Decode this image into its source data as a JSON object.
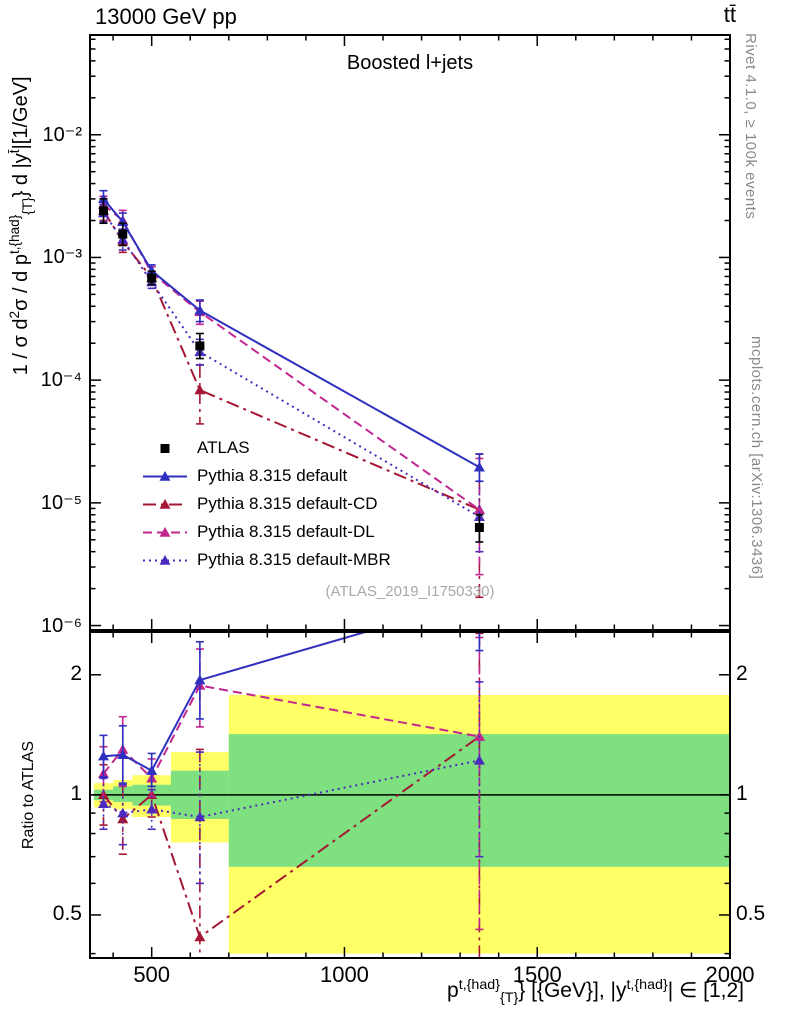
{
  "header": {
    "left": "13000 GeV pp",
    "right": "tt̄"
  },
  "side_notes": {
    "top_right": "Rivet 4.1.0, ≥ 100k events",
    "bottom_right": "mcplots.cern.ch [arXiv:1306.3436]"
  },
  "chart_data": {
    "type": "line",
    "title": "Boosted l+jets",
    "watermark": "(ATLAS_2019_I1750330)",
    "xlabel_html": "p<sup>t,{had}</sup><sub>{T}</sub>} [{GeV}], |y<sup>t,{had}</sup>| ∈ [1,2]",
    "xlim": [
      340,
      2000
    ],
    "xticks": [
      500,
      1000,
      1500,
      2000
    ],
    "x_minor_step": 100,
    "x": [
      375,
      425,
      500,
      625,
      1350
    ],
    "bin_edges": [
      350,
      400,
      450,
      550,
      700,
      2000
    ],
    "main": {
      "ylabel_html": "1 / σ d<sup>2</sup>σ / d p<sup>t,{had}</sup><sub>{T}</sub>} d |y<sup>t̄</sup>|[1/GeV]",
      "ylim": [
        9.2e-07,
        0.065
      ],
      "yticks": [
        {
          "value": 0.01,
          "label": "10⁻²"
        },
        {
          "value": 0.001,
          "label": "10⁻³"
        },
        {
          "value": 0.0001,
          "label": "10⁻⁴"
        },
        {
          "value": 1e-05,
          "label": "10⁻⁵"
        },
        {
          "value": 1e-06,
          "label": "10⁻⁶"
        }
      ]
    },
    "ratio": {
      "ylabel": "Ratio to ATLAS",
      "ylim": [
        0.39,
        2.56
      ],
      "yticks": [
        {
          "value": 0.5,
          "label": "0.5"
        },
        {
          "value": 1,
          "label": "1"
        },
        {
          "value": 2,
          "label": "2"
        }
      ],
      "yminor": [
        0.4,
        0.6,
        0.7,
        0.8,
        0.9
      ],
      "band_colors": {
        "yellow": "#ffff66",
        "green": "#7fe07f"
      },
      "bands": [
        {
          "xlo": 350,
          "xhi": 400,
          "yellow": [
            0.93,
            1.07
          ],
          "green": [
            0.97,
            1.03
          ]
        },
        {
          "xlo": 400,
          "xhi": 450,
          "yellow": [
            0.92,
            1.09
          ],
          "green": [
            0.96,
            1.05
          ]
        },
        {
          "xlo": 450,
          "xhi": 550,
          "yellow": [
            0.88,
            1.12
          ],
          "green": [
            0.94,
            1.06
          ]
        },
        {
          "xlo": 550,
          "xhi": 700,
          "yellow": [
            0.76,
            1.28
          ],
          "green": [
            0.87,
            1.15
          ]
        },
        {
          "xlo": 700,
          "xhi": 2000,
          "yellow": [
            0.4,
            1.78
          ],
          "green": [
            0.66,
            1.42
          ]
        }
      ]
    },
    "series": [
      {
        "name": "ATLAS",
        "color": "#000000",
        "marker": "square",
        "line": "none",
        "ratio_line": 1,
        "y": [
          0.0024,
          0.00155,
          0.00068,
          0.00019,
          6.3e-06
        ],
        "ylo": [
          0.0019,
          0.00125,
          0.0006,
          0.00015,
          4.8e-06
        ],
        "yhi": [
          0.003,
          0.0019,
          0.00077,
          0.00024,
          8e-06
        ]
      },
      {
        "name": "Pythia 8.315 default",
        "color": "#2f2fc0",
        "marker": "triangle",
        "line": "solid",
        "y": [
          0.003,
          0.00195,
          0.00078,
          0.00037,
          1.95e-05
        ],
        "ylo": [
          0.00255,
          0.00162,
          0.0007,
          0.0003,
          1.5e-05
        ],
        "yhi": [
          0.0035,
          0.0023,
          0.00087,
          0.00045,
          2.5e-05
        ],
        "r": [
          1.25,
          1.26,
          1.15,
          1.94,
          3.1
        ],
        "rlo": [
          1.11,
          1.07,
          1.05,
          1.55,
          2.3
        ],
        "rhi": [
          1.41,
          1.49,
          1.27,
          2.42,
          3.9
        ]
      },
      {
        "name": "Pythia 8.315 default-CD",
        "color": "#a61733",
        "marker": "triangle",
        "line": "dashdot",
        "y": [
          0.0024,
          0.00135,
          0.00068,
          8.3e-05,
          8.8e-06
        ],
        "ylo": [
          0.002,
          0.0011,
          0.0006,
          4.4e-05,
          1.7e-06
        ],
        "yhi": [
          0.00285,
          0.00162,
          0.00077,
          0.000133,
          2.5e-05
        ],
        "r": [
          1.0,
          0.87,
          1.0,
          0.44,
          1.4
        ],
        "rlo": [
          0.84,
          0.71,
          0.88,
          0.23,
          0.36
        ],
        "rhi": [
          1.19,
          1.06,
          1.13,
          1.3,
          2.54
        ]
      },
      {
        "name": "Pythia 8.315 default-DL",
        "color": "#c2268f",
        "marker": "triangle",
        "line": "dashed",
        "y": [
          0.0027,
          0.002,
          0.00075,
          0.00036,
          8.8e-06
        ],
        "ylo": [
          0.0023,
          0.00162,
          0.00067,
          0.000285,
          2.6e-06
        ],
        "yhi": [
          0.00315,
          0.00242,
          0.00084,
          0.00044,
          2.3e-05
        ],
        "r": [
          1.13,
          1.3,
          1.1,
          1.88,
          1.4
        ],
        "rlo": [
          0.96,
          1.05,
          0.99,
          1.48,
          0.46
        ],
        "rhi": [
          1.32,
          1.57,
          1.23,
          2.32,
          2.48
        ]
      },
      {
        "name": "Pythia 8.315 default-MBR",
        "color": "#4b2bbf",
        "marker": "triangle",
        "line": "dotted",
        "y": [
          0.0023,
          0.0014,
          0.00063,
          0.00017,
          7.7e-06
        ],
        "ylo": [
          0.00195,
          0.00115,
          0.00056,
          0.000133,
          4e-06
        ],
        "yhi": [
          0.0027,
          0.0017,
          0.00071,
          0.000215,
          1.5e-05
        ],
        "r": [
          0.95,
          0.9,
          0.92,
          0.88,
          1.22
        ],
        "rlo": [
          0.82,
          0.75,
          0.82,
          0.6,
          0.7
        ],
        "rhi": [
          1.1,
          1.06,
          1.03,
          1.28,
          1.92
        ]
      }
    ]
  }
}
